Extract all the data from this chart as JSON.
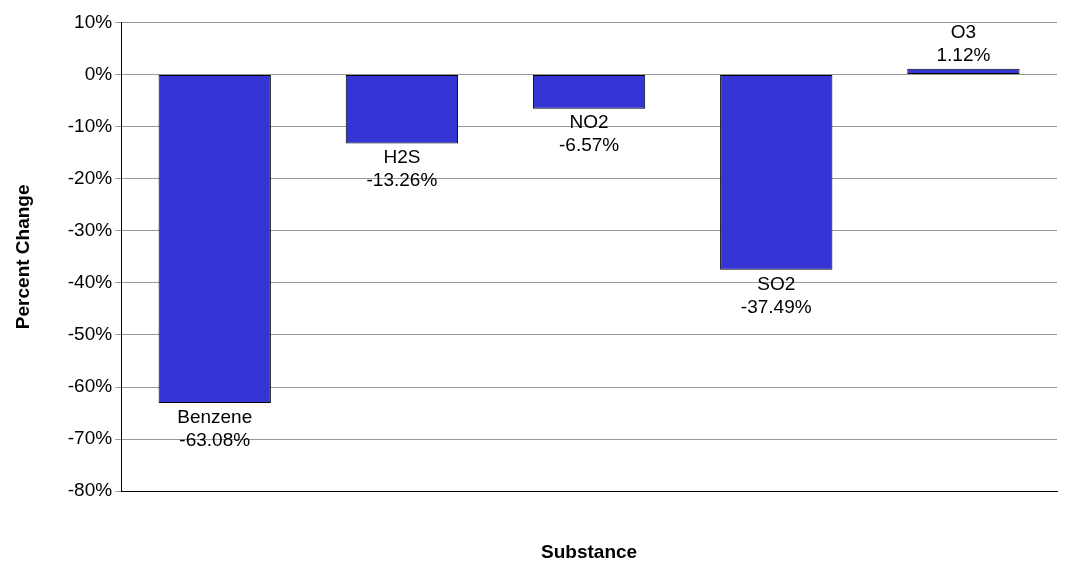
{
  "chart_data": {
    "type": "bar",
    "xlabel": "Substance",
    "ylabel": "Percent Change",
    "categories": [
      "Benzene",
      "H2S",
      "NO2",
      "SO2",
      "O3"
    ],
    "values": [
      -63.08,
      -13.26,
      -6.57,
      -37.49,
      1.12
    ],
    "value_labels": [
      "-63.08%",
      "-13.26%",
      "-6.57%",
      "-37.49%",
      "1.12%"
    ],
    "color": "#3535d6",
    "ylim": [
      -80,
      10
    ],
    "yticks": [
      {
        "value": -80,
        "label": "-80%"
      },
      {
        "value": -70,
        "label": "-70%"
      },
      {
        "value": -60,
        "label": "-60%"
      },
      {
        "value": -50,
        "label": "-50%"
      },
      {
        "value": -40,
        "label": "-40%"
      },
      {
        "value": -30,
        "label": "-30%"
      },
      {
        "value": -20,
        "label": "-20%"
      },
      {
        "value": -10,
        "label": "-10%"
      },
      {
        "value": 0,
        "label": "0%"
      },
      {
        "value": 10,
        "label": "10%"
      }
    ],
    "grid": "y",
    "legend": false,
    "tick_labels": "y"
  }
}
